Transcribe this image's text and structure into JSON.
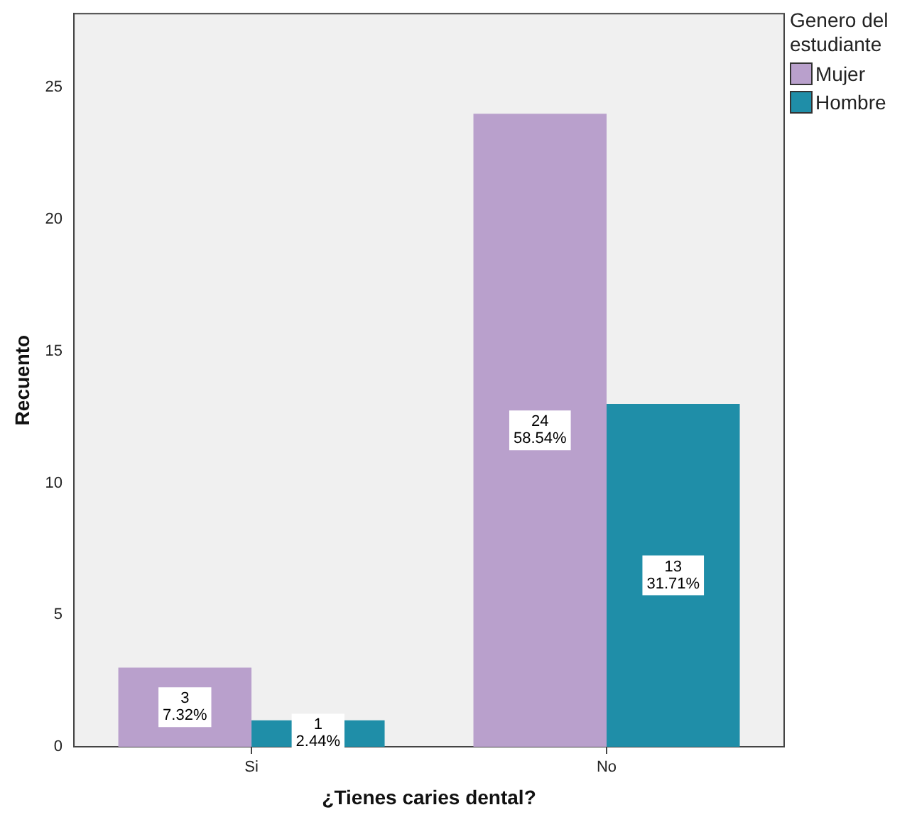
{
  "chart_data": {
    "type": "bar",
    "xlabel": "¿Tienes caries dental?",
    "ylabel": "Recuento",
    "legend_title": "Genero del estudiante",
    "legend": "top right",
    "grid": false,
    "categories": [
      "Si",
      "No"
    ],
    "series": [
      {
        "name": "Mujer",
        "color": "#b9a0cc",
        "values": [
          3,
          24
        ],
        "value_labels": [
          "3\n7.32%",
          "24\n58.54%"
        ]
      },
      {
        "name": "Hombre",
        "color": "#1f8ea8",
        "values": [
          1,
          13
        ],
        "value_labels": [
          "1\n2.44%",
          "13\n31.71%"
        ]
      }
    ],
    "ylim": [
      0,
      27.8
    ],
    "yticks": [
      0,
      5,
      10,
      15,
      20,
      25
    ]
  }
}
